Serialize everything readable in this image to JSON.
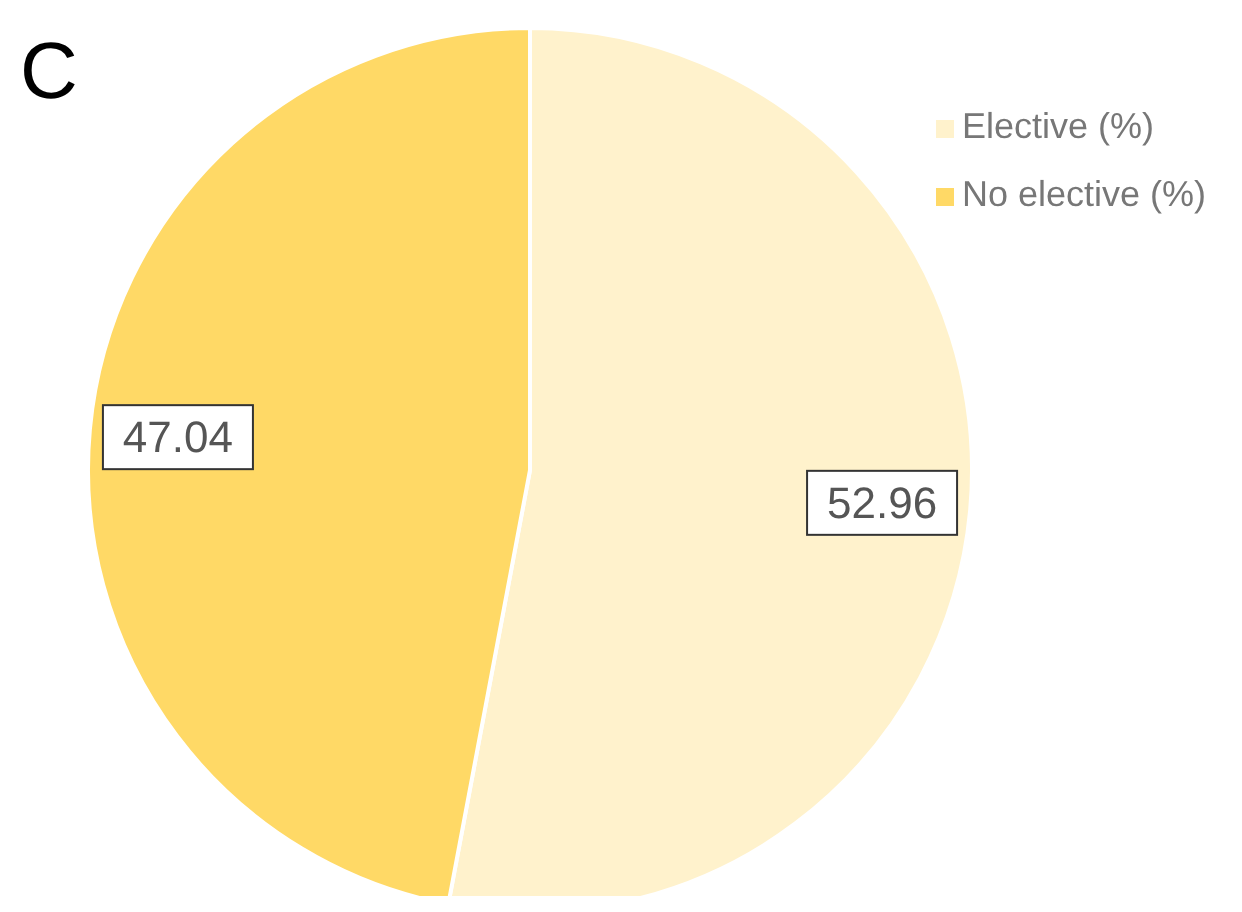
{
  "chart_data": {
    "type": "pie",
    "title": "C",
    "categories": [
      "Elective (%)",
      "No elective (%)"
    ],
    "values": [
      52.96,
      47.04
    ],
    "colors": [
      "#fff2cc",
      "#ffd966"
    ],
    "data_labels": true,
    "legend": "top right"
  }
}
